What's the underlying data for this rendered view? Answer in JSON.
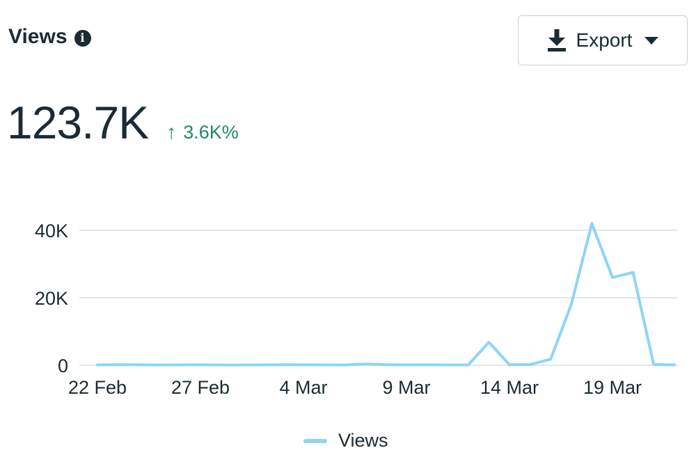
{
  "header": {
    "title": "Views",
    "info_icon": "info-icon",
    "info_glyph": "i"
  },
  "toolbar": {
    "export_label": "Export",
    "export_icon": "download-icon",
    "export_caret_icon": "caret-down-icon"
  },
  "metric": {
    "value": "123.7K",
    "delta_arrow": "↑",
    "delta": "3.6K%",
    "delta_color": "#1e8a6a"
  },
  "chart_data": {
    "type": "line",
    "xlabel": "",
    "ylabel": "",
    "x_ticks": [
      "22 Feb",
      "27 Feb",
      "4 Mar",
      "9 Mar",
      "14 Mar",
      "19 Mar"
    ],
    "y_ticks": [
      "0",
      "20K",
      "40K"
    ],
    "y_tick_values": [
      0,
      20000,
      40000
    ],
    "ylim": [
      0,
      44000
    ],
    "grid": true,
    "legend_position": "bottom-center",
    "series": [
      {
        "name": "Views",
        "color": "#8ed4f8",
        "x": [
          "22 Feb",
          "23 Feb",
          "24 Feb",
          "25 Feb",
          "26 Feb",
          "27 Feb",
          "28 Feb",
          "1 Mar",
          "2 Mar",
          "3 Mar",
          "4 Mar",
          "5 Mar",
          "6 Mar",
          "7 Mar",
          "8 Mar",
          "9 Mar",
          "10 Mar",
          "11 Mar",
          "12 Mar",
          "13 Mar",
          "14 Mar",
          "15 Mar",
          "16 Mar",
          "17 Mar",
          "18 Mar",
          "19 Mar",
          "20 Mar",
          "21 Mar",
          "22 Mar"
        ],
        "values": [
          100,
          150,
          120,
          80,
          100,
          120,
          90,
          80,
          100,
          150,
          120,
          100,
          80,
          350,
          150,
          100,
          120,
          90,
          100,
          6800,
          150,
          200,
          1800,
          18000,
          42000,
          26000,
          27500,
          200,
          100
        ]
      }
    ]
  }
}
